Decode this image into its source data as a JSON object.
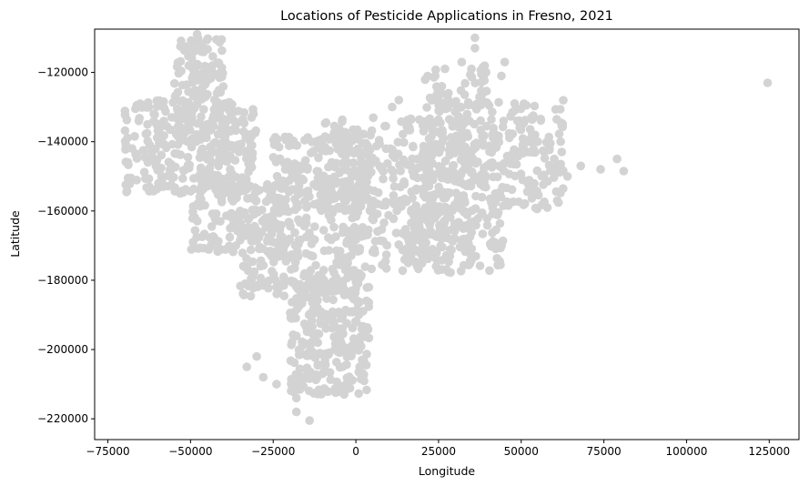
{
  "chart_data": {
    "type": "scatter",
    "title": "Locations of Pesticide Applications in Fresno, 2021",
    "xlabel": "Longitude",
    "ylabel": "Latitude",
    "xlim": [
      -79000,
      134000
    ],
    "ylim": [
      -226000,
      -107500
    ],
    "xticks": [
      {
        "value": -75000,
        "label": "−75000"
      },
      {
        "value": -50000,
        "label": "−50000"
      },
      {
        "value": -25000,
        "label": "−25000"
      },
      {
        "value": 0,
        "label": "0"
      },
      {
        "value": 25000,
        "label": "25000"
      },
      {
        "value": 50000,
        "label": "50000"
      },
      {
        "value": 75000,
        "label": "75000"
      },
      {
        "value": 100000,
        "label": "100000"
      },
      {
        "value": 125000,
        "label": "125000"
      }
    ],
    "yticks": [
      {
        "value": -120000,
        "label": "−120000"
      },
      {
        "value": -140000,
        "label": "−140000"
      },
      {
        "value": -160000,
        "label": "−160000"
      },
      {
        "value": -180000,
        "label": "−180000"
      },
      {
        "value": -200000,
        "label": "−200000"
      },
      {
        "value": -220000,
        "label": "−220000"
      }
    ],
    "grid": false,
    "marker_color": "#d3d3d3",
    "regions": [
      {
        "x": [
          -70000,
          -30000
        ],
        "y": [
          -155000,
          -128000
        ],
        "n": 320
      },
      {
        "x": [
          -55000,
          -40000
        ],
        "y": [
          -135000,
          -110000
        ],
        "n": 120
      },
      {
        "x": [
          -50000,
          -20000
        ],
        "y": [
          -172000,
          -152000
        ],
        "n": 160
      },
      {
        "x": [
          -35000,
          -12000
        ],
        "y": [
          -185000,
          -162000
        ],
        "n": 120
      },
      {
        "x": [
          -25000,
          5000
        ],
        "y": [
          -160000,
          -138000
        ],
        "n": 200
      },
      {
        "x": [
          -20000,
          4000
        ],
        "y": [
          -213000,
          -178000
        ],
        "n": 280
      },
      {
        "x": [
          -10000,
          35000
        ],
        "y": [
          -178000,
          -133000
        ],
        "n": 380
      },
      {
        "x": [
          20000,
          63000
        ],
        "y": [
          -160000,
          -128000
        ],
        "n": 300
      },
      {
        "x": [
          15000,
          45000
        ],
        "y": [
          -178000,
          -158000
        ],
        "n": 120
      },
      {
        "x": [
          20000,
          40000
        ],
        "y": [
          -132000,
          -118000
        ],
        "n": 40
      }
    ],
    "points": [
      {
        "x": -33000,
        "y": -205000
      },
      {
        "x": -30000,
        "y": -202000
      },
      {
        "x": -28000,
        "y": -208000
      },
      {
        "x": -24000,
        "y": -210000
      },
      {
        "x": -18000,
        "y": -214000
      },
      {
        "x": -18000,
        "y": -218000
      },
      {
        "x": -14000,
        "y": -220500
      },
      {
        "x": -50000,
        "y": -112000
      },
      {
        "x": -48000,
        "y": -109000
      },
      {
        "x": -38000,
        "y": -148000
      },
      {
        "x": -40000,
        "y": -155000
      },
      {
        "x": -35000,
        "y": -160000
      },
      {
        "x": -38000,
        "y": -165000
      },
      {
        "x": 11000,
        "y": -130000
      },
      {
        "x": 13000,
        "y": -128000
      },
      {
        "x": 21000,
        "y": -122000
      },
      {
        "x": 24000,
        "y": -121000
      },
      {
        "x": 26000,
        "y": -124000
      },
      {
        "x": 28000,
        "y": -126000
      },
      {
        "x": 27000,
        "y": -130000
      },
      {
        "x": 32000,
        "y": -117000
      },
      {
        "x": 36000,
        "y": -110000
      },
      {
        "x": 36000,
        "y": -113000
      },
      {
        "x": 45000,
        "y": -117000
      },
      {
        "x": 44000,
        "y": -121000
      },
      {
        "x": 48000,
        "y": -129000
      },
      {
        "x": 55000,
        "y": -140000
      },
      {
        "x": 57000,
        "y": -143000
      },
      {
        "x": 60000,
        "y": -145000
      },
      {
        "x": 64000,
        "y": -150000
      },
      {
        "x": 68000,
        "y": -147000
      },
      {
        "x": 74000,
        "y": -148000
      },
      {
        "x": 79000,
        "y": -145000
      },
      {
        "x": 81000,
        "y": -148500
      },
      {
        "x": 124500,
        "y": -123000
      }
    ]
  }
}
